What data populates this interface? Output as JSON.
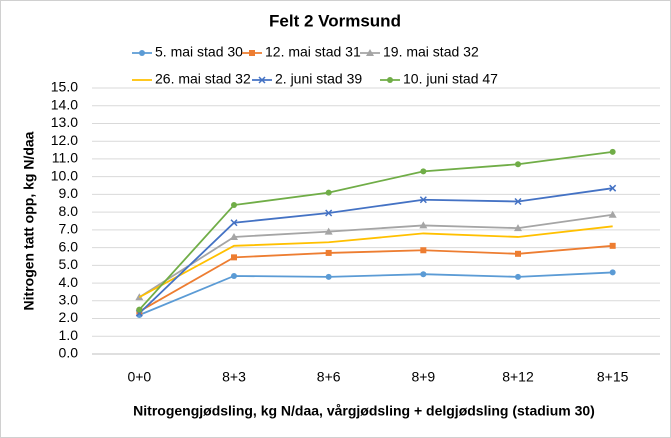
{
  "chart_data": {
    "type": "line",
    "title": "Felt 2 Vormsund",
    "y_label": "Nitrogen tatt opp, kg N/daa",
    "x_label": "Nitrogengjødsling, kg N/daa, vårgjødsling + delgjødsling (stadium 30)",
    "categories": [
      "0+0",
      "8+3",
      "8+6",
      "8+9",
      "8+12",
      "8+15"
    ],
    "series": [
      {
        "name": "5. mai stad 30",
        "color": "#5b9bd5",
        "marker": "circle",
        "values": [
          2.2,
          4.4,
          4.35,
          4.5,
          4.35,
          4.6
        ]
      },
      {
        "name": "12. mai stad 31",
        "color": "#ed7d31",
        "marker": "square",
        "values": [
          2.4,
          5.45,
          5.7,
          5.85,
          5.65,
          6.1
        ]
      },
      {
        "name": "19. mai stad 32",
        "color": "#a5a5a5",
        "marker": "triangle",
        "values": [
          3.2,
          6.6,
          6.9,
          7.25,
          7.1,
          7.85
        ]
      },
      {
        "name": "26. mai stad 32",
        "color": "#ffc000",
        "marker": "none",
        "values": [
          3.2,
          6.1,
          6.3,
          6.8,
          6.6,
          7.2
        ]
      },
      {
        "name": "2. juni stad 39",
        "color": "#4472c4",
        "marker": "x",
        "values": [
          2.3,
          7.4,
          7.95,
          8.7,
          8.6,
          9.35
        ]
      },
      {
        "name": "10. juni stad 47",
        "color": "#70ad47",
        "marker": "circle",
        "values": [
          2.5,
          8.4,
          9.1,
          10.3,
          10.7,
          11.4
        ]
      }
    ],
    "ylim": [
      0,
      15
    ],
    "yticks": [
      {
        "value": 0,
        "label": "0.0"
      },
      {
        "value": 1,
        "label": "1.0"
      },
      {
        "value": 2,
        "label": "2.0"
      },
      {
        "value": 3,
        "label": "3.0"
      },
      {
        "value": 4,
        "label": "4.0"
      },
      {
        "value": 5,
        "label": "5.0"
      },
      {
        "value": 6,
        "label": "6.0"
      },
      {
        "value": 7,
        "label": "7.0"
      },
      {
        "value": 8,
        "label": "8.0"
      },
      {
        "value": 9,
        "label": "9.0"
      },
      {
        "value": 10,
        "label": "10.0"
      },
      {
        "value": 11,
        "label": "11.0"
      },
      {
        "value": 12,
        "label": "12.0"
      },
      {
        "value": 13,
        "label": "13.0"
      },
      {
        "value": 14,
        "label": "14.0"
      },
      {
        "value": 15,
        "label": "15.0"
      }
    ],
    "grid": true,
    "legend": "top"
  }
}
